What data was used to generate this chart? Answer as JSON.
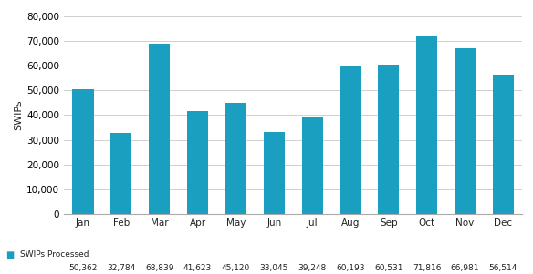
{
  "categories": [
    "Jan",
    "Feb",
    "Mar",
    "Apr",
    "May",
    "Jun",
    "Jul",
    "Aug",
    "Sep",
    "Oct",
    "Nov",
    "Dec"
  ],
  "values": [
    50362,
    32784,
    68839,
    41623,
    45120,
    33045,
    39248,
    60193,
    60531,
    71816,
    66981,
    56514
  ],
  "bar_color": "#1a9fc0",
  "ylabel": "SWIPs",
  "ylim": [
    0,
    80000
  ],
  "yticks": [
    0,
    10000,
    20000,
    30000,
    40000,
    50000,
    60000,
    70000,
    80000
  ],
  "legend_label": "SWIPs Processed",
  "legend_color": "#1a9fc0",
  "background_color": "#ffffff",
  "grid_color": "#d0d0d0",
  "label_values": [
    "50,362",
    "32,784",
    "68,839",
    "41,623",
    "45,120",
    "33,045",
    "39,248",
    "60,193",
    "60,531",
    "71,816",
    "66,981",
    "56,514"
  ]
}
